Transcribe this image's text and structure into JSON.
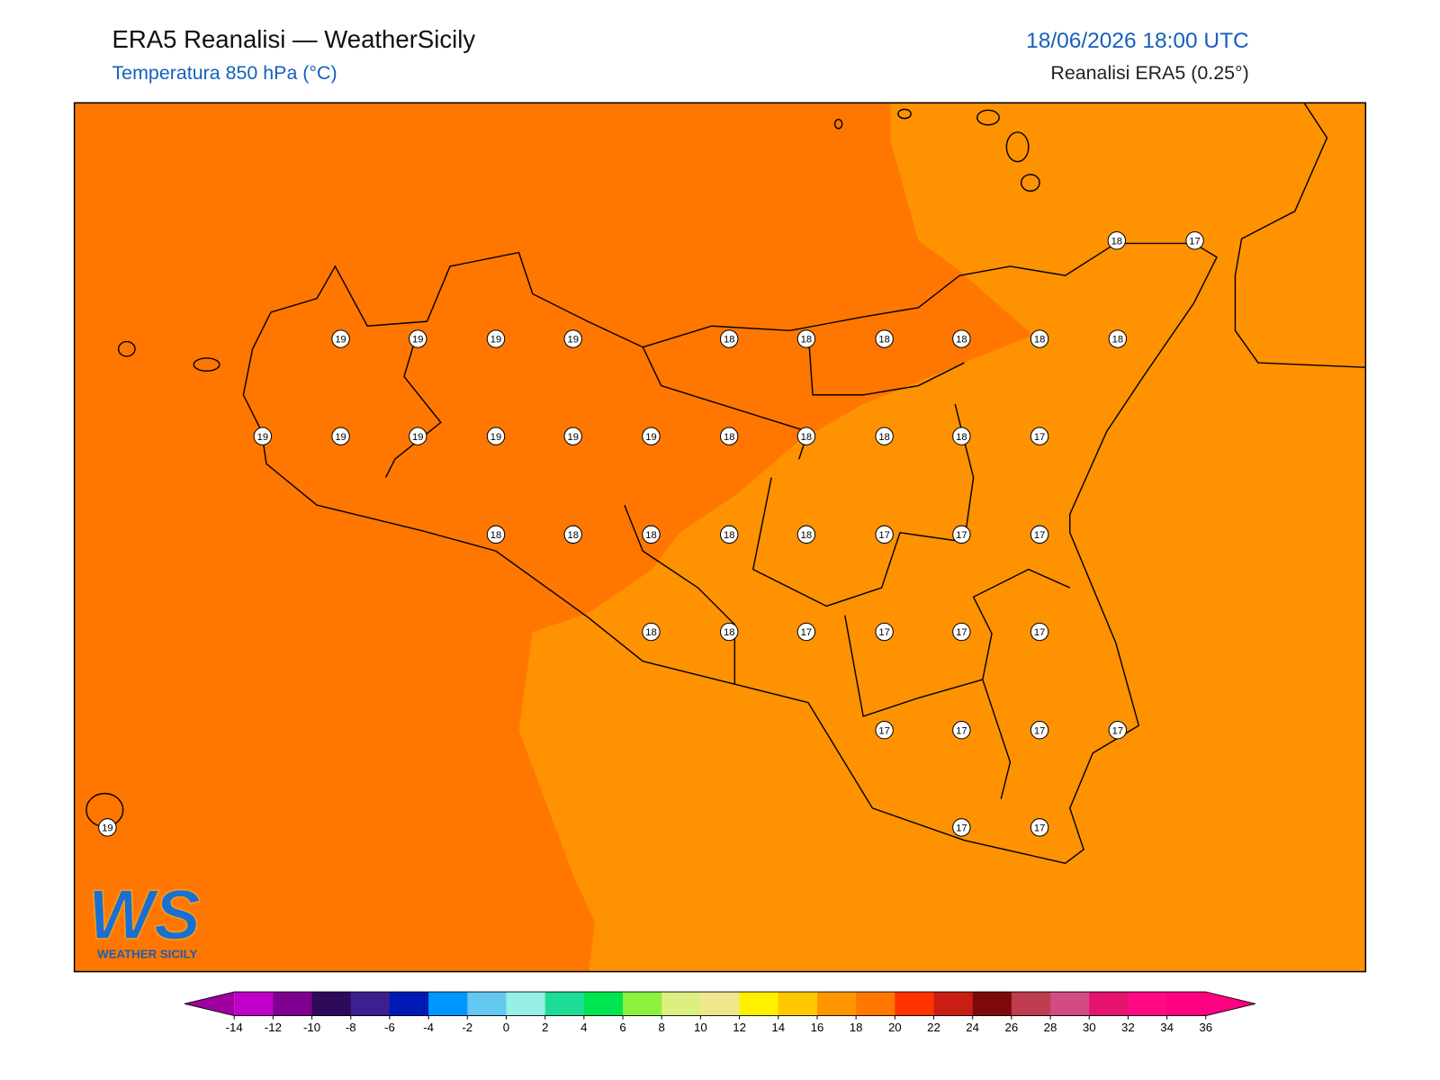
{
  "header": {
    "title": "ERA5 Reanalisi — WeatherSicily",
    "subtitle": "Temperatura 850 hPa (°C)",
    "datetime": "18/06/2026 18:00 UTC",
    "source": "Reanalisi ERA5 (0.25°)"
  },
  "stations": [
    18,
    17,
    19,
    19,
    19,
    19,
    18,
    18,
    18,
    18,
    18,
    18,
    19,
    19,
    19,
    19,
    19,
    19,
    18,
    18,
    18,
    18,
    17,
    18,
    18,
    18,
    18,
    18,
    17,
    17,
    17,
    18,
    18,
    17,
    17,
    17,
    17,
    17,
    17,
    17,
    17,
    19,
    17,
    17
  ],
  "colorbar": {
    "ticks": [
      -14,
      -12,
      -10,
      -8,
      -6,
      -4,
      -2,
      0,
      2,
      4,
      6,
      8,
      10,
      12,
      14,
      16,
      18,
      20,
      22,
      24,
      26,
      28,
      30,
      32,
      34,
      36
    ],
    "colors": [
      "#c000c8",
      "#800090",
      "#2d0a5a",
      "#3c2090",
      "#0019b4",
      "#0096ff",
      "#64c8f0",
      "#96f0e6",
      "#1edc96",
      "#00e650",
      "#8cf03c",
      "#dcf082",
      "#f0e68c",
      "#fff000",
      "#ffc800",
      "#ff9600",
      "#ff7800",
      "#ff3200",
      "#c81e14",
      "#7d0a0a",
      "#c03c50",
      "#d24b82",
      "#e6146e",
      "#ff0a82",
      "#ff0080"
    ],
    "under": "#a000a0",
    "over": "#ff0080"
  },
  "logo": {
    "mark": "WS",
    "text": "WEATHER SICILY"
  }
}
